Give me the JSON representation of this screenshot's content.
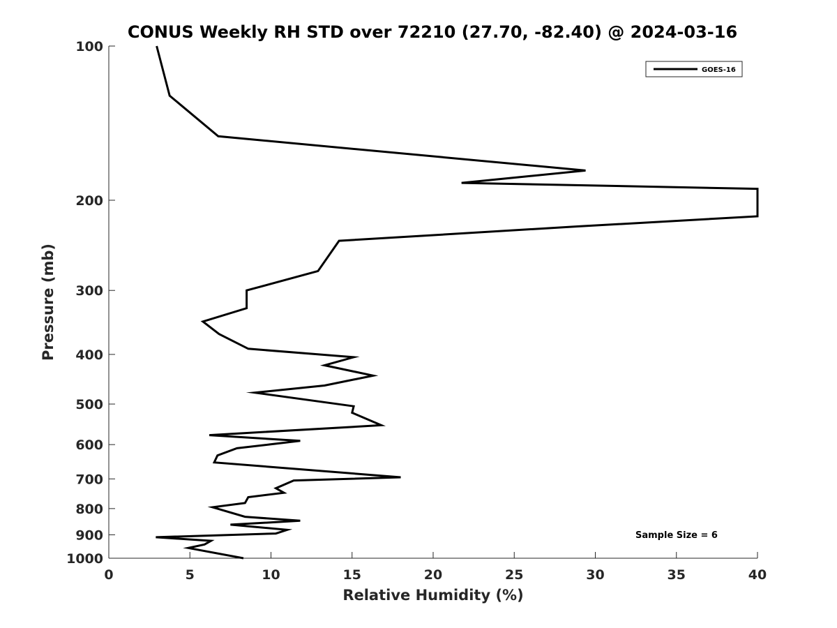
{
  "chart_data": {
    "type": "line",
    "title": "CONUS Weekly RH STD over 72210 (27.70, -82.40) @ 2024-03-16",
    "xlabel": "Relative Humidity (%)",
    "ylabel": "Pressure (mb)",
    "xlim": [
      0,
      40
    ],
    "ylim": [
      100,
      1000
    ],
    "y_scale": "log",
    "y_reversed": true,
    "x_ticks": [
      "0",
      "5",
      "10",
      "15",
      "20",
      "25",
      "30",
      "35",
      "40"
    ],
    "y_ticks": [
      {
        "value": 100,
        "label": "100"
      },
      {
        "value": 200,
        "label": "200"
      },
      {
        "value": 300,
        "label": "300"
      },
      {
        "value": 400,
        "label": "400"
      },
      {
        "value": 500,
        "label": "500"
      },
      {
        "value": 600,
        "label": "600"
      },
      {
        "value": 700,
        "label": "700"
      },
      {
        "value": 800,
        "label": "800"
      },
      {
        "value": 900,
        "label": "900"
      },
      {
        "value": 1000,
        "label": "1000"
      }
    ],
    "grid": false,
    "legend_position": "top-right",
    "series": [
      {
        "name": "GOES-16",
        "color": "#000000",
        "points": [
          [
            2.95,
            100
          ],
          [
            3.75,
            125
          ],
          [
            6.75,
            150
          ],
          [
            29.4,
            175
          ],
          [
            21.75,
            185
          ],
          [
            40,
            190
          ],
          [
            40,
            215
          ],
          [
            28.9,
            225
          ],
          [
            14.2,
            240
          ],
          [
            12.9,
            275
          ],
          [
            8.5,
            300
          ],
          [
            8.5,
            325
          ],
          [
            5.8,
            345
          ],
          [
            6.8,
            365
          ],
          [
            8.6,
            390
          ],
          [
            15.1,
            405
          ],
          [
            13.3,
            420
          ],
          [
            16.3,
            440
          ],
          [
            13.3,
            460
          ],
          [
            9.0,
            475
          ],
          [
            15.1,
            505
          ],
          [
            15.0,
            520
          ],
          [
            16.8,
            550
          ],
          [
            6.2,
            575
          ],
          [
            11.8,
            590
          ],
          [
            7.9,
            610
          ],
          [
            6.7,
            630
          ],
          [
            6.5,
            650
          ],
          [
            18.0,
            695
          ],
          [
            11.4,
            705
          ],
          [
            10.3,
            730
          ],
          [
            10.8,
            745
          ],
          [
            8.6,
            760
          ],
          [
            8.4,
            780
          ],
          [
            6.4,
            795
          ],
          [
            8.4,
            830
          ],
          [
            11.8,
            845
          ],
          [
            7.5,
            860
          ],
          [
            11.0,
            880
          ],
          [
            10.3,
            895
          ],
          [
            2.9,
            910
          ],
          [
            6.3,
            925
          ],
          [
            5.9,
            940
          ],
          [
            4.9,
            955
          ],
          [
            8.3,
            1000
          ]
        ]
      }
    ],
    "annotations": [
      "Sample Size = 6"
    ]
  }
}
